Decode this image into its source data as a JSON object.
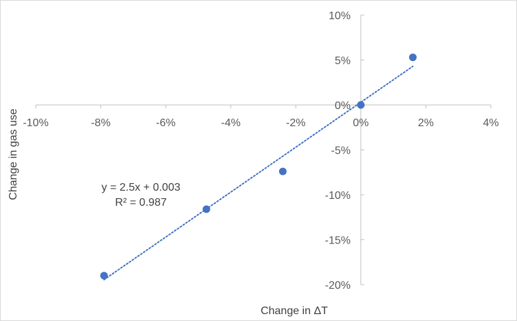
{
  "chart_data": {
    "type": "scatter",
    "xlabel": "Change in ΔT",
    "ylabel": "Change in gas use",
    "xlim": [
      -0.1,
      0.04
    ],
    "ylim": [
      -0.2,
      0.1
    ],
    "x_ticks": [
      -0.1,
      -0.08,
      -0.06,
      -0.04,
      -0.02,
      0.0,
      0.02,
      0.04
    ],
    "x_tick_labels": [
      "-10%",
      "-8%",
      "-6%",
      "-4%",
      "-2%",
      "0%",
      "2%",
      "4%"
    ],
    "y_ticks": [
      0.1,
      0.05,
      0.0,
      -0.05,
      -0.1,
      -0.15,
      -0.2
    ],
    "y_tick_labels": [
      "10%",
      "5%",
      "0%",
      "-5%",
      "-10%",
      "-15%",
      "-20%"
    ],
    "grid": false,
    "points": [
      {
        "x": -0.079,
        "y": -0.19
      },
      {
        "x": -0.0475,
        "y": -0.116
      },
      {
        "x": -0.024,
        "y": -0.074
      },
      {
        "x": 0.0,
        "y": 0.0
      },
      {
        "x": 0.016,
        "y": 0.053
      }
    ],
    "trendline": {
      "style": "dotted",
      "slope": 2.5,
      "intercept": 0.003,
      "x_range": [
        -0.079,
        0.016
      ]
    },
    "annotations": [
      {
        "text": "y = 2.5x + 0.003"
      },
      {
        "text": "R² = 0.987"
      }
    ],
    "colors": {
      "marker": "#4472C4",
      "trendline": "#4472C4",
      "axis": "#bfbfbf",
      "text": "#595959"
    }
  }
}
